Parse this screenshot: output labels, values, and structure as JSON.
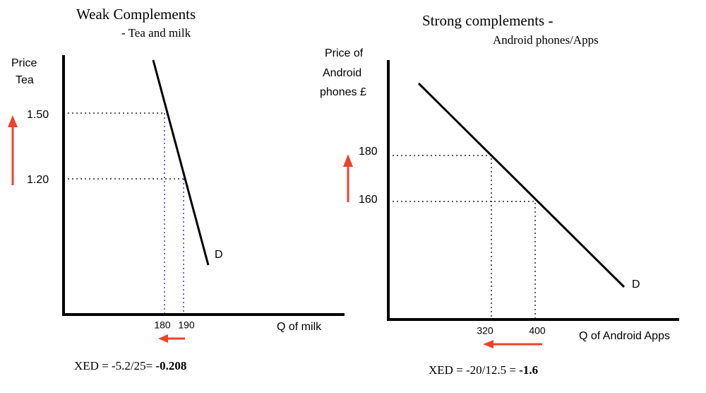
{
  "left": {
    "title": "Weak Complements",
    "subtitle": "- Tea and milk",
    "y_label": [
      "Price",
      "Tea"
    ],
    "y_ticks": [
      "1.50",
      "1.20"
    ],
    "x_ticks": [
      "180",
      "190"
    ],
    "x_label": "Q  of milk",
    "curve_label": "D",
    "xed": "XED =  -5.2/25=",
    "xed_result": "-0.208"
  },
  "right": {
    "title": "Strong complements -",
    "subtitle": "Android phones/Apps",
    "y_label": [
      "Price of",
      "Android",
      "phones £"
    ],
    "y_ticks": [
      "180",
      "160"
    ],
    "x_ticks": [
      "320",
      "400"
    ],
    "x_label": "Q  of Android Apps",
    "curve_label": "D",
    "xed": "XED =  -20/12.5 =",
    "xed_result": "-1.6"
  }
}
